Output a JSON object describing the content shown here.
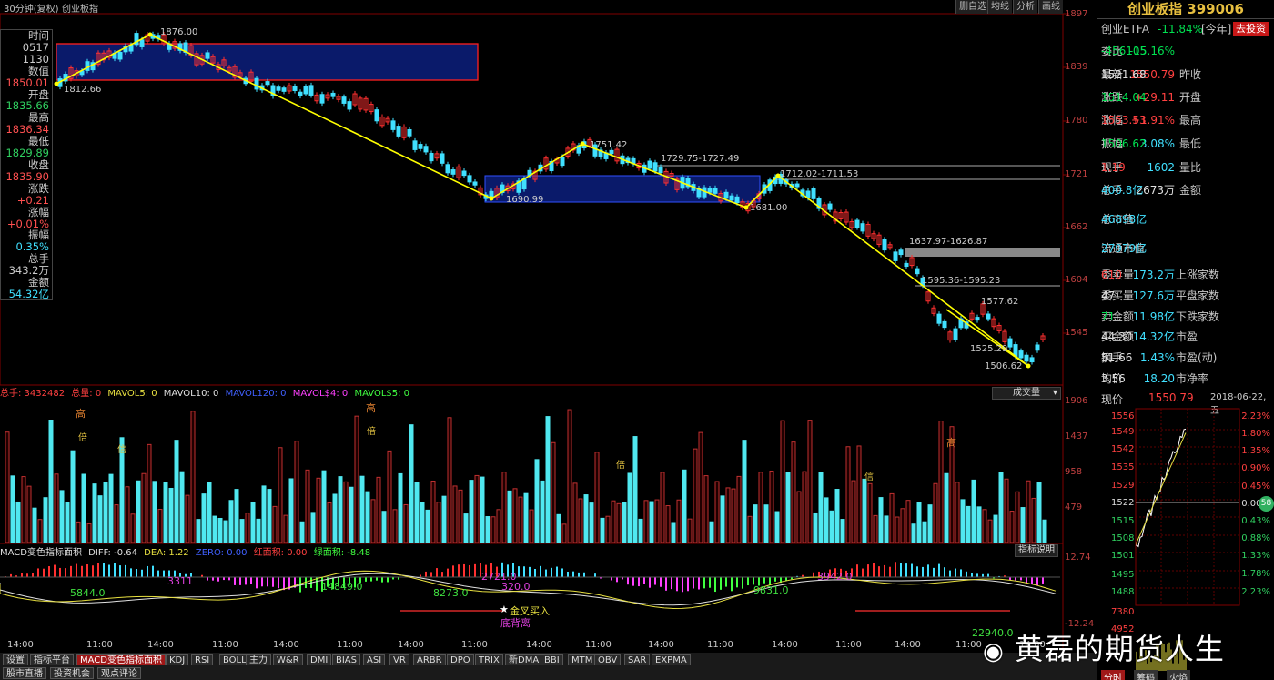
{
  "header": {
    "period": "30分钟(复权)",
    "name": "创业板指",
    "buttons": [
      "删自选",
      "均线",
      "分析",
      "画线"
    ]
  },
  "info_panel": {
    "labels": [
      "时间",
      "0517",
      "1130",
      "数值",
      "1850.01",
      "开盘",
      "1835.66",
      "最高",
      "1836.34",
      "最低",
      "1829.89",
      "收盘",
      "1835.90",
      "涨跌",
      "+0.21",
      "涨幅",
      "+0.01%",
      "振幅",
      "0.35%",
      "总手",
      "343.2万",
      "金额",
      "54.32亿"
    ]
  },
  "price_axis": [
    "1897",
    "1839",
    "1780",
    "1721",
    "1662",
    "1604",
    "1545"
  ],
  "price_annotations": [
    "1812.66",
    "1876.00",
    "1751.42",
    "1729.75-1727.49",
    "1690.99",
    "1712.02-1711.53",
    "1681.00",
    "1637.97-1626.87",
    "1595.36-1595.23",
    "1577.62",
    "1525.29",
    "1506.62"
  ],
  "volume": {
    "indicator_line": [
      "总手: 3432482",
      "总量: 0",
      "MAVOL5: 0",
      "MAVOL10: 0",
      "MAVOL120: 0",
      "MAVOL$4: 0",
      "MAVOL$5: 0"
    ],
    "dropdown": "成交量",
    "axis": [
      "1906",
      "1437",
      "958",
      "479"
    ],
    "markers": [
      "高",
      "倍",
      "信",
      "高",
      "倍",
      "倍",
      "信",
      "高"
    ]
  },
  "macd": {
    "indicator_line": [
      "MACD变色指标面积",
      "DIFF: -0.64",
      "DEA: 1.22",
      "ZERO: 0.00",
      "红面积: 0.00",
      "绿面积: -8.48"
    ],
    "explain_button": "指标说明",
    "axis": [
      "12.74",
      "-12.24"
    ],
    "labels": [
      "5844.0",
      "3311",
      "14849.0",
      "8273.0",
      "2721.0",
      "320.0",
      "9831.0",
      "3942.0",
      "22940.0",
      "金叉买入",
      "底背离"
    ]
  },
  "time_axis": [
    "14:00",
    "11:00",
    "14:00",
    "11:00",
    "14:00",
    "11:00",
    "14:00",
    "11:00",
    "14:00",
    "11:00",
    "14:00",
    "11:00",
    "14:00",
    "11:00",
    "14:00",
    "11:00",
    "14:00"
  ],
  "tabs": [
    "设置",
    "指标平台",
    "MACD变色指标面积",
    "KDJ",
    "RSI",
    "BOLL",
    "主力",
    "W&R",
    "DMI",
    "BIAS",
    "ASI",
    "VR",
    "ARBR",
    "DPO",
    "TRIX",
    "新DMA",
    "BBI",
    "MTM",
    "OBV",
    "SAR",
    "EXPMA"
  ],
  "tabs2": [
    "股市直播",
    "投资机会",
    "观点评论"
  ],
  "quote": {
    "title": "创业板指 399006",
    "etf": "创业ETFA",
    "etf_change": "-11.84%",
    "etf_note": "[今年]",
    "etf_button": "去投资",
    "rows": [
      {
        "l1": "委比",
        "v1": "-15.16%",
        "l2": "",
        "v2": "-456105"
      },
      {
        "l1": "最新",
        "v1": "1550.79",
        "l2": "昨收",
        "v2": "1521.68"
      },
      {
        "l1": "涨跌",
        "v1": "+29.11",
        "l2": "开盘",
        "v2": "1514.04"
      },
      {
        "l1": "涨幅",
        "v1": "+1.91%",
        "l2": "最高",
        "v2": "1553.53"
      },
      {
        "l1": "振幅",
        "v1": "3.08%",
        "l2": "最低",
        "v2": "1506.62"
      },
      {
        "l1": "现手",
        "v1": "1602",
        "l2": "量比",
        "v2": "1.19"
      },
      {
        "l1": "总手",
        "v1": "2673万",
        "l2": "金额",
        "v2": "400.8亿"
      }
    ],
    "cap": [
      {
        "l": "总市值",
        "v": "46898亿"
      },
      {
        "l": "流通市值",
        "v": "27979亿"
      }
    ],
    "breadth": [
      {
        "l1": "委卖量",
        "v1": "173.2万",
        "l2": "上涨家数",
        "v2": "610"
      },
      {
        "l1": "委买量",
        "v1": "127.6万",
        "l2": "平盘家数",
        "v2": "47"
      },
      {
        "l1": "卖金额",
        "v1": "11.98亿",
        "l2": "下跌家数",
        "v2": "71"
      },
      {
        "l1": "买金额",
        "v1": "14.32亿",
        "l2": "市盈",
        "v2": "44.30"
      },
      {
        "l1": "换手",
        "v1": "1.43%",
        "l2": "市盈(动)",
        "v2": "51.66"
      },
      {
        "l1": "均价",
        "v1": "18.20",
        "l2": "市净率",
        "v2": "3.56"
      }
    ]
  },
  "mini": {
    "label": "现价",
    "price": "1550.79",
    "date": "2018-06-22,五",
    "left_axis": [
      "1556",
      "1549",
      "1542",
      "1535",
      "1529",
      "1522",
      "1515",
      "1508",
      "1501",
      "1495",
      "1488",
      "7380",
      "4952"
    ],
    "right_axis": [
      "2.23%",
      "1.80%",
      "1.35%",
      "0.90%",
      "0.45%",
      "0.00%",
      "0.43%",
      "0.88%",
      "1.33%",
      "1.78%",
      "2.23%"
    ],
    "tabs": [
      "分时",
      "筹码",
      "火焰"
    ],
    "badge": "58"
  },
  "watermark": "黄磊的期货人生"
}
